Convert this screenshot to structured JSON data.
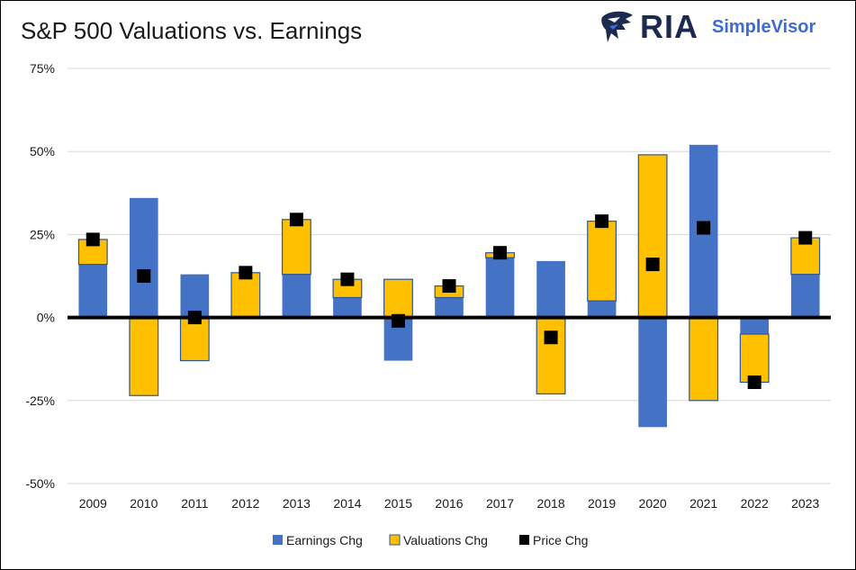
{
  "title": "S&P 500 Valuations vs. Earnings",
  "logo": {
    "brand": "RIA",
    "product": "SimpleVisor",
    "icon": "eagle-icon"
  },
  "colors": {
    "earnings": "#4472C4",
    "valuations": "#FFC000",
    "valuations_border": "#2F5597",
    "price": "#000000",
    "grid": "#D9D9D9",
    "zero_line": "#000000"
  },
  "chart_data": {
    "type": "bar",
    "stacked": true,
    "title": "S&P 500 Valuations vs. Earnings",
    "categories": [
      "2009",
      "2010",
      "2011",
      "2012",
      "2013",
      "2014",
      "2015",
      "2016",
      "2017",
      "2018",
      "2019",
      "2020",
      "2021",
      "2022",
      "2023"
    ],
    "series": [
      {
        "name": "Earnings Chg",
        "kind": "bar",
        "values": [
          16,
          36,
          13,
          0,
          13,
          6,
          -13,
          6,
          18,
          17,
          5,
          -33,
          52,
          -5,
          13
        ]
      },
      {
        "name": "Valuations Chg",
        "kind": "bar",
        "values": [
          7.5,
          -23.5,
          -13,
          13.5,
          16.5,
          5.5,
          11.5,
          3.5,
          1.5,
          -23,
          24,
          49,
          -25,
          -14.5,
          11
        ]
      },
      {
        "name": "Price Chg",
        "kind": "marker",
        "values": [
          23.5,
          12.5,
          0,
          13.5,
          29.5,
          11.5,
          -1,
          9.5,
          19.5,
          -6,
          29,
          16,
          27,
          -19.5,
          24
        ]
      }
    ],
    "yticks": [
      75,
      50,
      25,
      0,
      -25,
      -50
    ],
    "ytick_labels": [
      "75%",
      "50%",
      "25%",
      "0%",
      "-25%",
      "-50%"
    ],
    "ylim": [
      -50,
      75
    ],
    "grid": true,
    "legend_position": "bottom",
    "legend": [
      "Earnings Chg",
      "Valuations Chg",
      "Price Chg"
    ]
  }
}
